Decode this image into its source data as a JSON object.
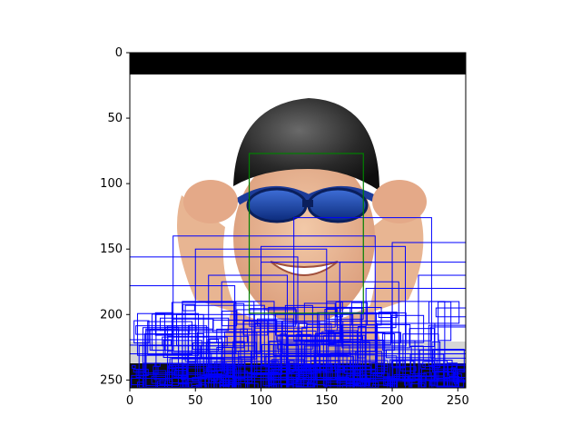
{
  "chart_data": {
    "type": "image",
    "xlim": [
      0,
      256
    ],
    "ylim": [
      256,
      0
    ],
    "x_ticks": [
      "0",
      "50",
      "100",
      "150",
      "200",
      "250"
    ],
    "x_tick_values": [
      0,
      50,
      100,
      150,
      200,
      250
    ],
    "y_ticks": [
      "0",
      "50",
      "100",
      "150",
      "200",
      "250"
    ],
    "y_tick_values": [
      0,
      50,
      100,
      150,
      200,
      250
    ],
    "image_content": "swimmer",
    "box_colors": {
      "proposal": "#0000ff",
      "face": "#008000"
    },
    "face_box": {
      "x0": 91,
      "y0": 77,
      "x1": 178,
      "y1": 199
    },
    "proposal_boxes_sample": [
      [
        33,
        140,
        187,
        228
      ],
      [
        0,
        156,
        128,
        256
      ],
      [
        0,
        178,
        80,
        256
      ],
      [
        50,
        150,
        150,
        248
      ],
      [
        100,
        160,
        200,
        256
      ],
      [
        125,
        126,
        230,
        220
      ],
      [
        160,
        160,
        256,
        250
      ],
      [
        200,
        145,
        256,
        230
      ],
      [
        40,
        190,
        110,
        256
      ],
      [
        80,
        200,
        170,
        256
      ],
      [
        150,
        190,
        240,
        256
      ],
      [
        10,
        210,
        60,
        256
      ],
      [
        0,
        230,
        256,
        256
      ],
      [
        60,
        170,
        120,
        240
      ],
      [
        180,
        180,
        256,
        256
      ],
      [
        120,
        205,
        200,
        256
      ],
      [
        70,
        175,
        205,
        250
      ],
      [
        100,
        148,
        210,
        256
      ],
      [
        20,
        200,
        95,
        256
      ],
      [
        220,
        170,
        256,
        256
      ]
    ]
  }
}
